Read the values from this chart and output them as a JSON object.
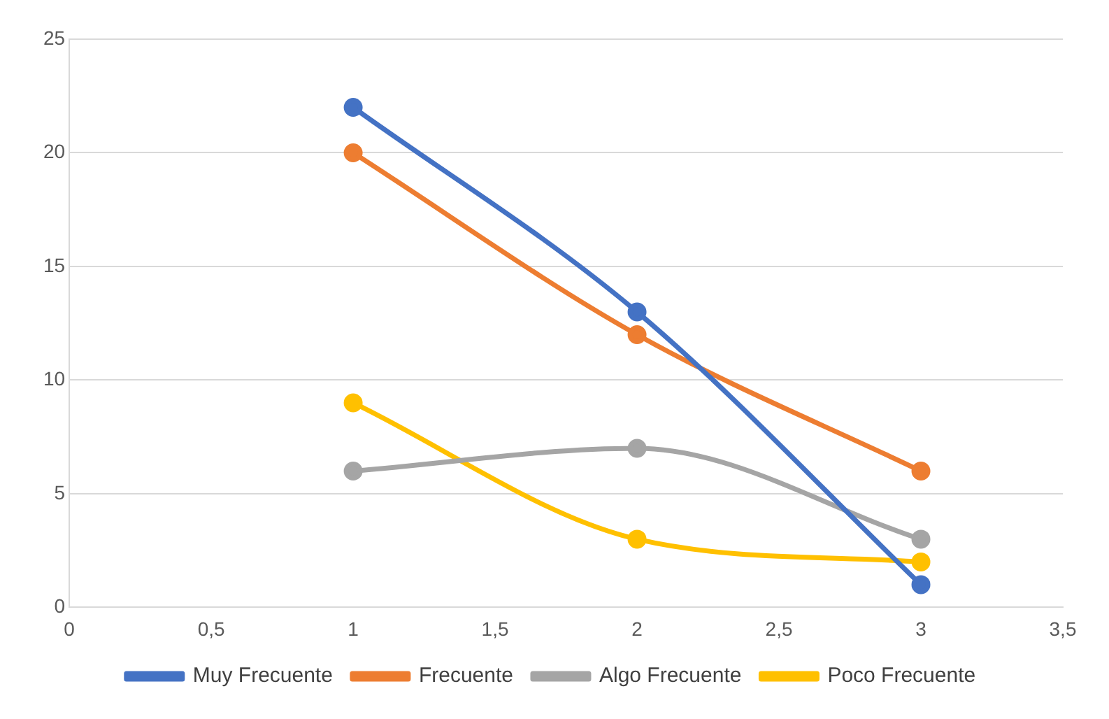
{
  "chart_data": {
    "type": "line",
    "x": [
      1,
      2,
      3
    ],
    "series": [
      {
        "name": "Muy Frecuente",
        "color": "#4472c4",
        "values": [
          22,
          13,
          1
        ]
      },
      {
        "name": "Frecuente",
        "color": "#ed7d31",
        "values": [
          20,
          12,
          6
        ]
      },
      {
        "name": "Algo Frecuente",
        "color": "#a5a5a5",
        "values": [
          6,
          7,
          3
        ]
      },
      {
        "name": "Poco Frecuente",
        "color": "#ffc000",
        "values": [
          9,
          3,
          2
        ]
      }
    ],
    "xlim": [
      0,
      3.5
    ],
    "xticks": [
      0,
      {
        "value": 0.5,
        "label": "0,5"
      },
      1,
      {
        "value": 1.5,
        "label": "1,5"
      },
      2,
      {
        "value": 2.5,
        "label": "2,5"
      },
      3,
      {
        "value": 3.5,
        "label": "3,5"
      }
    ],
    "ylim": [
      0,
      25
    ],
    "yticks": [
      0,
      5,
      10,
      15,
      20,
      25
    ],
    "grid": "y",
    "legend": "bottom",
    "marker": "circle",
    "line_style": "solid"
  }
}
